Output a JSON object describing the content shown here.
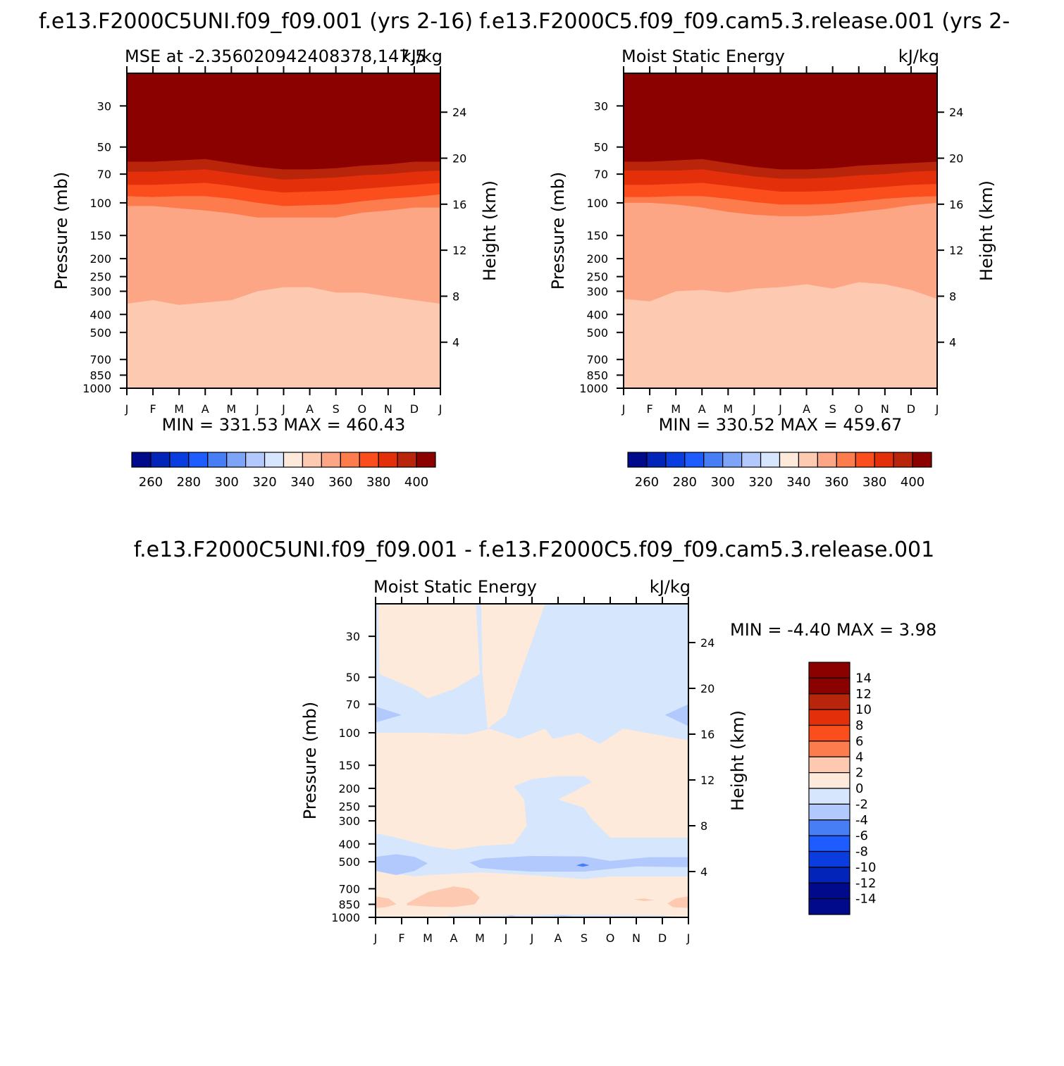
{
  "figure": {
    "title_left": "f.e13.F2000C5UNI.f09_f09.001  (yrs 2-16)",
    "title_right": "f.e13.F2000C5.f09_f09.cam5.3.release.001  (yrs 2-",
    "title_diff": "f.e13.F2000C5UNI.f09_f09.001 - f.e13.F2000C5.f09_f09.cam5.3.release.001"
  },
  "palette": {
    "abs": [
      "#000a8a",
      "#0324b8",
      "#0a3de0",
      "#1e5cff",
      "#477ef5",
      "#7ea4f8",
      "#b1c9fc",
      "#d6e6fd",
      "#feeadb",
      "#fdc9b1",
      "#fca685",
      "#fc7c4e",
      "#fc4d1c",
      "#e4300a",
      "#b8250b",
      "#8a0100"
    ],
    "diff": [
      "#000a8a",
      "#0324b8",
      "#0a3de0",
      "#1e5cff",
      "#477ef5",
      "#b1c9fc",
      "#d6e6fd",
      "#feeadb",
      "#fdc9b1",
      "#fc7c4e",
      "#fc4d1c",
      "#e4300a",
      "#b8250b",
      "#8a0100"
    ]
  },
  "chart_data": [
    {
      "type": "heatmap",
      "panel": "control",
      "title": "MSE at -2.356020942408378,147.5",
      "units": "kJ/kg",
      "xlabel": "",
      "ylabel": "Pressure (mb)",
      "ylabel_right": "Height (km)",
      "x_ticks": [
        "J",
        "F",
        "M",
        "A",
        "M",
        "J",
        "J",
        "A",
        "S",
        "O",
        "N",
        "D",
        "J"
      ],
      "y_ticks": [
        "30",
        "50",
        "70",
        "100",
        "150",
        "200",
        "250",
        "300",
        "400",
        "500",
        "700",
        "850",
        "1000"
      ],
      "y2_ticks": [
        "24",
        "20",
        "16",
        "12",
        "8",
        "4"
      ],
      "ylim": [
        20,
        1000
      ],
      "y_scale": "log",
      "months": [
        "J",
        "F",
        "M",
        "A",
        "M",
        "J",
        "J",
        "A",
        "S",
        "O",
        "N",
        "D",
        "J"
      ],
      "contour_levels": [
        400,
        390,
        380,
        370,
        360,
        350,
        340,
        330
      ],
      "level_pressure_mb": [
        [
          52,
          52,
          51,
          50,
          52,
          55,
          57,
          57,
          56,
          54,
          53,
          52,
          52
        ],
        [
          60,
          60,
          59,
          58,
          61,
          64,
          66,
          66,
          65,
          63,
          62,
          60,
          60
        ],
        [
          68,
          68,
          67,
          66,
          69,
          72,
          75,
          74,
          73,
          71,
          70,
          68,
          67
        ],
        [
          80,
          80,
          79,
          78,
          81,
          85,
          88,
          87,
          86,
          84,
          82,
          80,
          78
        ],
        [
          92,
          93,
          92,
          92,
          95,
          100,
          104,
          103,
          102,
          98,
          95,
          93,
          90
        ],
        [
          104,
          104,
          107,
          110,
          114,
          120,
          120,
          120,
          120,
          113,
          110,
          106,
          106
        ],
        [
          350,
          335,
          355,
          345,
          335,
          300,
          285,
          285,
          305,
          305,
          320,
          335,
          350
        ],
        [
          900,
          905,
          900,
          900,
          905,
          915,
          915,
          920,
          915,
          915,
          915,
          910,
          900
        ]
      ],
      "min": "331.53",
      "max": "460.43",
      "colorbar_labels": [
        "260",
        "280",
        "300",
        "320",
        "340",
        "360",
        "380",
        "400"
      ]
    },
    {
      "type": "heatmap",
      "panel": "test",
      "title": "Moist Static Energy",
      "units": "kJ/kg",
      "xlabel": "",
      "ylabel": "Pressure (mb)",
      "ylabel_right": "Height (km)",
      "x_ticks": [
        "J",
        "F",
        "M",
        "A",
        "M",
        "J",
        "J",
        "A",
        "S",
        "O",
        "N",
        "D",
        "J"
      ],
      "y_ticks": [
        "30",
        "50",
        "70",
        "100",
        "150",
        "200",
        "250",
        "300",
        "400",
        "500",
        "700",
        "850",
        "1000"
      ],
      "y2_ticks": [
        "24",
        "20",
        "16",
        "12",
        "8",
        "4"
      ],
      "ylim": [
        20,
        1000
      ],
      "y_scale": "log",
      "months": [
        "J",
        "F",
        "M",
        "A",
        "M",
        "J",
        "J",
        "A",
        "S",
        "O",
        "N",
        "D",
        "J"
      ],
      "contour_levels": [
        400,
        390,
        380,
        370,
        360,
        350,
        340,
        330
      ],
      "level_pressure_mb": [
        [
          53,
          52,
          51,
          50,
          52,
          55,
          57,
          57,
          56,
          55,
          54,
          53,
          53
        ],
        [
          60,
          60,
          59,
          58,
          61,
          64,
          66,
          66,
          65,
          63,
          62,
          61,
          60
        ],
        [
          67,
          67,
          67,
          66,
          69,
          72,
          74,
          74,
          73,
          71,
          70,
          68,
          67
        ],
        [
          80,
          80,
          79,
          78,
          81,
          84,
          87,
          87,
          86,
          84,
          82,
          80,
          79
        ],
        [
          93,
          93,
          92,
          92,
          95,
          99,
          102,
          102,
          101,
          98,
          95,
          93,
          92
        ],
        [
          100,
          100,
          102,
          106,
          112,
          116,
          118,
          118,
          116,
          112,
          108,
          103,
          100
        ],
        [
          330,
          340,
          300,
          295,
          305,
          290,
          285,
          275,
          290,
          268,
          275,
          295,
          330
        ],
        [
          905,
          905,
          905,
          900,
          895,
          900,
          905,
          905,
          905,
          905,
          905,
          910,
          905
        ]
      ],
      "min": "330.52",
      "max": "459.67",
      "colorbar_labels": [
        "260",
        "280",
        "300",
        "320",
        "340",
        "360",
        "380",
        "400"
      ]
    },
    {
      "type": "heatmap",
      "panel": "difference",
      "title": "Moist Static Energy",
      "units": "kJ/kg",
      "xlabel": "",
      "ylabel": "Pressure (mb)",
      "ylabel_right": "Height (km)",
      "x_ticks": [
        "J",
        "F",
        "M",
        "A",
        "M",
        "J",
        "J",
        "A",
        "S",
        "O",
        "N",
        "D",
        "J"
      ],
      "y_ticks": [
        "30",
        "50",
        "70",
        "100",
        "150",
        "200",
        "250",
        "300",
        "400",
        "500",
        "700",
        "850",
        "1000"
      ],
      "y2_ticks": [
        "24",
        "20",
        "16",
        "12",
        "8",
        "4"
      ],
      "ylim": [
        20,
        1000
      ],
      "y_scale": "log",
      "months": [
        "J",
        "F",
        "M",
        "A",
        "M",
        "J",
        "J",
        "A",
        "S",
        "O",
        "N",
        "D",
        "J"
      ],
      "regions": [
        {
          "value_range": [
            0,
            2
          ],
          "points": [
            [
              0,
              20
            ],
            [
              12,
              20
            ],
            [
              12,
              1000
            ],
            [
              0,
              1000
            ]
          ]
        },
        {
          "value_range": [
            -2,
            0
          ],
          "points": [
            [
              0,
              20
            ],
            [
              0.1,
              20
            ],
            [
              0.15,
              48
            ],
            [
              1.5,
              58
            ],
            [
              2,
              65
            ],
            [
              3,
              58
            ],
            [
              4,
              48
            ],
            [
              3.85,
              20
            ],
            [
              4.05,
              20
            ],
            [
              4.1,
              48
            ],
            [
              4.3,
              95
            ],
            [
              5,
              80
            ],
            [
              6.5,
              20
            ],
            [
              12,
              20
            ],
            [
              12,
              110
            ],
            [
              9.5,
              95
            ],
            [
              8.6,
              115
            ],
            [
              7.8,
              100
            ],
            [
              6.8,
              108
            ],
            [
              6.5,
              95
            ],
            [
              5.5,
              108
            ],
            [
              4.4,
              95
            ],
            [
              3.5,
              102
            ],
            [
              2,
              100
            ],
            [
              0,
              100
            ]
          ]
        },
        {
          "value_range": [
            -2,
            0
          ],
          "points": [
            [
              5.3,
              195
            ],
            [
              6,
              178
            ],
            [
              7,
              172
            ],
            [
              8,
              172
            ],
            [
              8.3,
              185
            ],
            [
              7,
              230
            ],
            [
              8,
              255
            ],
            [
              8.3,
              295
            ],
            [
              9,
              370
            ],
            [
              12,
              370
            ],
            [
              12,
              600
            ],
            [
              9,
              600
            ],
            [
              8,
              620
            ],
            [
              6,
              590
            ],
            [
              4,
              570
            ],
            [
              2,
              590
            ],
            [
              1.5,
              600
            ],
            [
              0,
              560
            ],
            [
              0,
              350
            ],
            [
              0.8,
              370
            ],
            [
              2,
              410
            ],
            [
              3,
              430
            ],
            [
              4,
              410
            ],
            [
              5.3,
              400
            ],
            [
              5.8,
              320
            ],
            [
              5.7,
              230
            ]
          ]
        },
        {
          "value_range": [
            -4,
            -2
          ],
          "points": [
            [
              0,
              470
            ],
            [
              0.8,
              455
            ],
            [
              1.5,
              470
            ],
            [
              2,
              510
            ],
            [
              1.5,
              560
            ],
            [
              0.8,
              590
            ],
            [
              0,
              560
            ]
          ]
        },
        {
          "value_range": [
            -4,
            -2
          ],
          "points": [
            [
              3.6,
              505
            ],
            [
              4.2,
              480
            ],
            [
              6,
              465
            ],
            [
              8,
              468
            ],
            [
              9,
              495
            ],
            [
              10.5,
              472
            ],
            [
              12,
              472
            ],
            [
              12,
              535
            ],
            [
              10,
              530
            ],
            [
              8.8,
              550
            ],
            [
              8,
              565
            ],
            [
              6,
              565
            ],
            [
              5,
              555
            ],
            [
              4,
              540
            ]
          ]
        },
        {
          "value_range": [
            -4,
            -2
          ],
          "points": [
            [
              0,
              72
            ],
            [
              1,
              80
            ],
            [
              0,
              88
            ]
          ]
        },
        {
          "value_range": [
            -4,
            -2
          ],
          "points": [
            [
              11.1,
              80
            ],
            [
              12,
              70
            ],
            [
              12,
              92
            ]
          ]
        },
        {
          "value_range": [
            -2,
            0
          ],
          "points": [
            [
              2.8,
              975
            ],
            [
              6,
              970
            ],
            [
              7,
              965
            ],
            [
              9,
              970
            ],
            [
              11,
              975
            ],
            [
              11.5,
              995
            ],
            [
              2.8,
              995
            ]
          ]
        },
        {
          "value_range": [
            -4,
            -2
          ],
          "points": [
            [
              5,
              980
            ],
            [
              5.2,
              975
            ],
            [
              5.4,
              985
            ],
            [
              5.2,
              990
            ]
          ]
        },
        {
          "value_range": [
            -4,
            -2
          ],
          "points": [
            [
              6.8,
              980
            ],
            [
              7.2,
              975
            ],
            [
              7.6,
              985
            ],
            [
              7.2,
              990
            ]
          ]
        },
        {
          "value_range": [
            -6,
            -4
          ],
          "points": [
            [
              7.7,
              523
            ],
            [
              7.95,
              510
            ],
            [
              8.2,
              522
            ],
            [
              7.95,
              532
            ]
          ]
        },
        {
          "value_range": [
            2,
            4
          ],
          "points": [
            [
              1.2,
              840
            ],
            [
              2,
              730
            ],
            [
              3,
              680
            ],
            [
              3.6,
              700
            ],
            [
              4,
              780
            ],
            [
              3.8,
              850
            ],
            [
              3,
              880
            ],
            [
              2,
              875
            ],
            [
              1.2,
              860
            ]
          ]
        },
        {
          "value_range": [
            2,
            4
          ],
          "points": [
            [
              0,
              770
            ],
            [
              0.5,
              790
            ],
            [
              0.8,
              850
            ],
            [
              0.4,
              880
            ],
            [
              0,
              890
            ]
          ]
        },
        {
          "value_range": [
            2,
            4
          ],
          "points": [
            [
              11.2,
              840
            ],
            [
              11.5,
              790
            ],
            [
              12,
              770
            ],
            [
              12,
              890
            ],
            [
              11.4,
              880
            ]
          ]
        },
        {
          "value_range": [
            2,
            4
          ],
          "points": [
            [
              9.9,
              800
            ],
            [
              10.3,
              790
            ],
            [
              10.7,
              808
            ],
            [
              10.3,
              815
            ]
          ]
        }
      ],
      "min": "-4.40",
      "max": "3.98",
      "colorbar_labels": [
        "14",
        "12",
        "10",
        "8",
        "6",
        "4",
        "2",
        "0",
        "-2",
        "-4",
        "-6",
        "-8",
        "-10",
        "-12",
        "-14"
      ]
    }
  ]
}
